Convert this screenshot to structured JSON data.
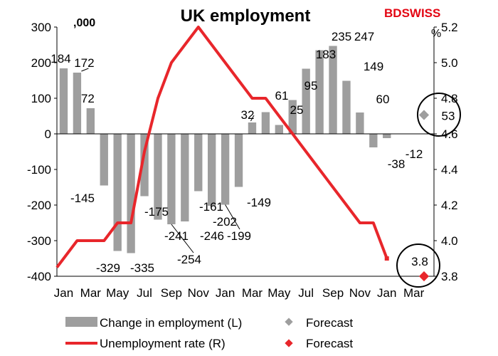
{
  "brand": {
    "text_main": "BD",
    "text_rest": "SWISS",
    "accent_color": "#e30613"
  },
  "chart_data": {
    "type": "bar",
    "title": "UK employment",
    "left_unit": ",000",
    "right_unit": "%",
    "x_tick_labels": [
      "Jan",
      "Mar",
      "May",
      "Jul",
      "Sep",
      "Nov",
      "Jan",
      "Mar",
      "May",
      "Jul",
      "Sep",
      "Nov",
      "Jan",
      "Mar"
    ],
    "bars": {
      "name": "Change in employment (L)",
      "color": "#9e9e9e",
      "values": [
        184,
        172,
        72,
        -145,
        -329,
        -335,
        -175,
        -241,
        -254,
        -246,
        -161,
        -202,
        -199,
        -149,
        32,
        61,
        25,
        95,
        183,
        235,
        247,
        149,
        60,
        -38,
        -12
      ],
      "labels": [
        "184",
        "172",
        "72",
        "-145",
        "-329",
        "-335",
        "-175",
        "-241",
        "-254",
        "-246",
        "-161",
        "-202",
        "-199",
        "-149",
        "32",
        "61",
        "25",
        "95",
        "183",
        "235",
        "247",
        "149",
        "60",
        "-38",
        "-12"
      ]
    },
    "bar_forecast": {
      "name": "Forecast",
      "value": 53,
      "label": "53",
      "color": "#9e9e9e"
    },
    "line": {
      "name": "Unemployment rate (R)",
      "color": "#e8262b",
      "values": [
        3.85,
        4.0,
        4.0,
        4.0,
        4.1,
        4.1,
        4.5,
        4.8,
        5.0,
        5.1,
        5.2,
        5.1,
        5.0,
        4.9,
        4.8,
        4.8,
        4.7,
        4.6,
        4.5,
        4.4,
        4.3,
        4.2,
        4.1,
        4.1,
        3.9
      ]
    },
    "line_last_label": "3.8",
    "line_forecast": {
      "name": "Forecast",
      "value": 3.8,
      "color": "#e8262b"
    },
    "y_left": {
      "min": -400,
      "max": 300,
      "step": 100,
      "tick_labels": [
        "-400",
        "-300",
        "-200",
        "-100",
        "0",
        "100",
        "200",
        "300"
      ]
    },
    "y_right": {
      "min": 3.8,
      "max": 5.2,
      "step": 0.2,
      "tick_labels": [
        "3.8",
        "4.0",
        "4.2",
        "4.4",
        "4.6",
        "4.8",
        "5.0",
        "5.2"
      ]
    },
    "grid": false,
    "legend_placement": "bottom"
  }
}
